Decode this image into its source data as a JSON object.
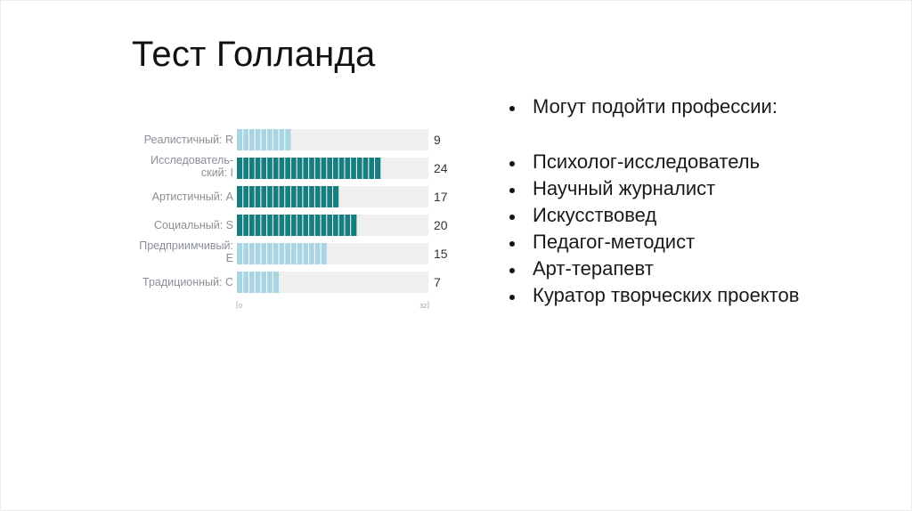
{
  "title": "Тест Голланда",
  "bullets": {
    "lead": "Могут подойти профессии:",
    "items": [
      "Психолог-исследователь",
      "Научный журналист",
      "Искусствовед",
      "Педагог-методист",
      "Арт-терапевт",
      "Куратор творческих проектов"
    ]
  },
  "chart_data": {
    "type": "bar",
    "orientation": "horizontal",
    "categories": [
      [
        "Реалистичный: R"
      ],
      [
        "Исследователь-",
        "ский: I"
      ],
      [
        "Артистичный: A"
      ],
      [
        "Социальный: S"
      ],
      [
        "Предприимчивый:",
        "E"
      ],
      [
        "Традиционный: C"
      ]
    ],
    "values": [
      9,
      24,
      17,
      20,
      15,
      7
    ],
    "xlim": [
      0,
      32
    ],
    "xticks": [
      "0",
      "32"
    ],
    "colors": {
      "light": "#a9d4e1",
      "dark": "#177e80",
      "track": "#efefef",
      "segment": "#ffffff"
    },
    "bar_color_keys": [
      "light",
      "dark",
      "dark",
      "dark",
      "light",
      "light"
    ]
  }
}
